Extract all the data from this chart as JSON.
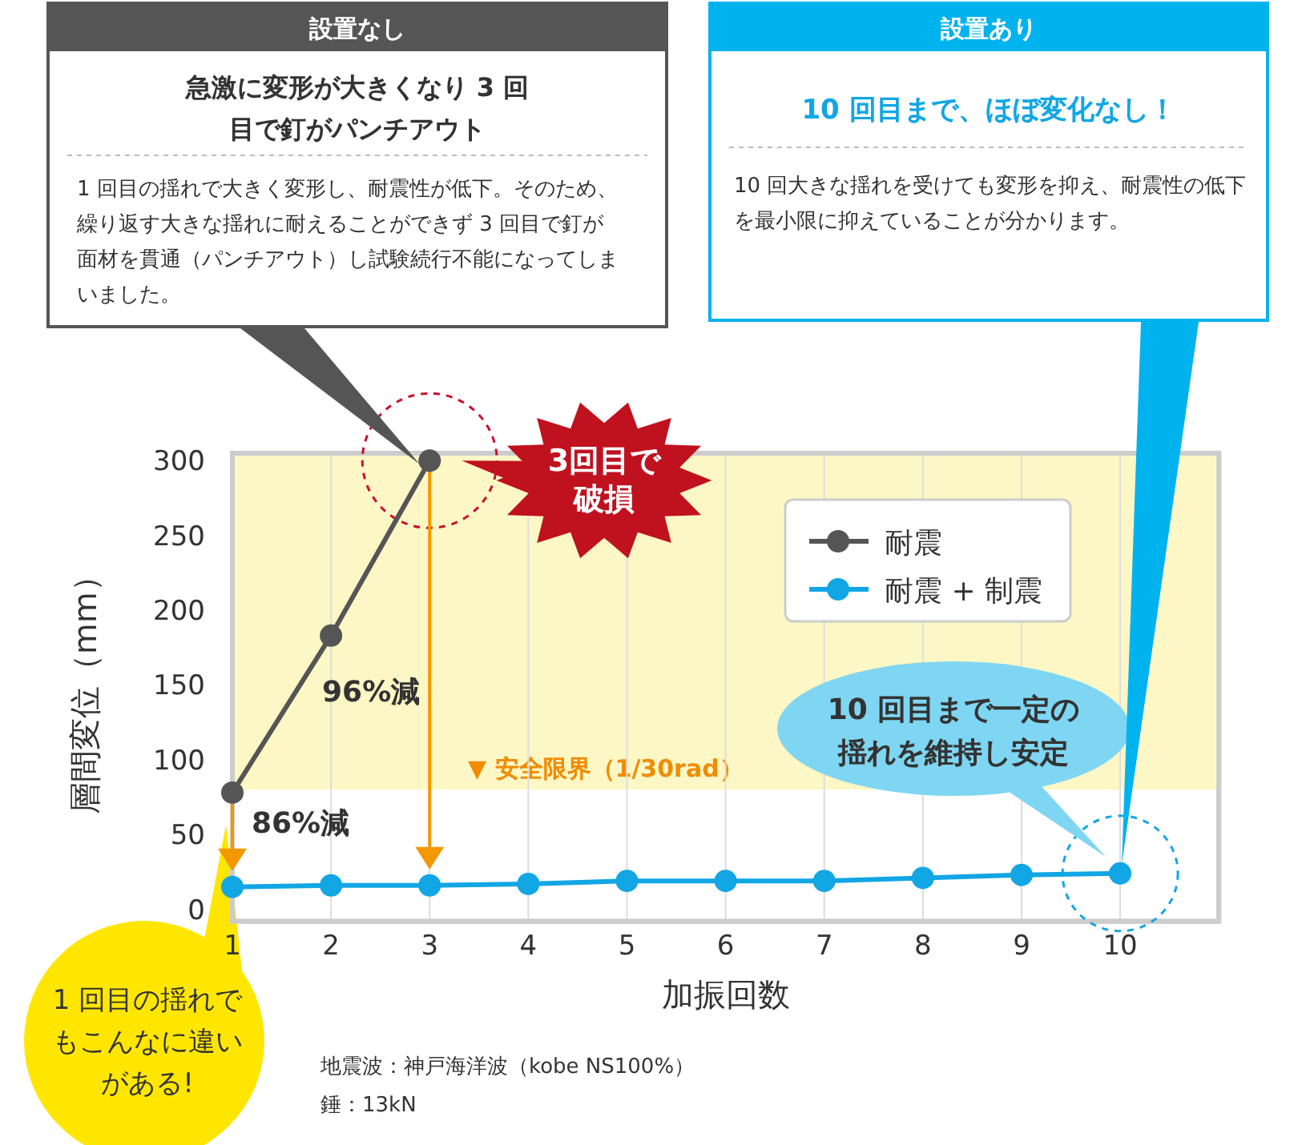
{
  "chart_data": {
    "type": "line",
    "xlabel": "加振回数",
    "ylabel": "層間変位（mm）",
    "x": [
      1,
      2,
      3,
      4,
      5,
      6,
      7,
      8,
      9,
      10
    ],
    "series": [
      {
        "name": "耐震",
        "color": "#555555",
        "x": [
          1,
          2,
          3
        ],
        "values": [
          78,
          183,
          300
        ]
      },
      {
        "name": "耐震 + 制震",
        "color": "#12a6e4",
        "values": [
          15,
          16,
          16,
          17,
          19,
          19,
          19,
          21,
          23,
          24
        ]
      }
    ],
    "xlim": [
      1,
      11
    ],
    "xticks": [
      1,
      2,
      3,
      4,
      5,
      6,
      7,
      8,
      9,
      10
    ],
    "ylim": [
      -8,
      305
    ],
    "yticks": [
      0,
      50,
      100,
      150,
      200,
      250,
      300
    ],
    "grid": "x",
    "legend": "top right",
    "marker": "circle",
    "line_style": "solid",
    "bands": [
      {
        "axis": "y",
        "from": 80,
        "to": 305,
        "label": "▼ 安全限界（1/30rad）",
        "color": "#fdf7c5"
      }
    ],
    "annotations": [
      "86%減",
      "96%減",
      "3回目で破損",
      "10 回目まで一定の揺れを維持し安定",
      "1 回目の揺れでもこんなに違いがある!",
      "設置なし",
      "急激に変形が大きくなり 3 回目で釘がパンチアウト",
      "1 回目の揺れで大きく変形し、耐震性が低下。そのため、繰り返す大きな揺れに耐えることができず 3 回目で釘が面材を貫通（パンチアウト）し試験続行不能になってしまいました。",
      "設置あり",
      "10 回目まで、ほぼ変化なし！",
      "10 回大きな揺れを受けても変形を抑え、耐震性の低下を最小限に抑えていることが分かります。",
      "地震波：神戸海洋波（kobe NS100%）",
      "錘：13kN"
    ]
  }
}
